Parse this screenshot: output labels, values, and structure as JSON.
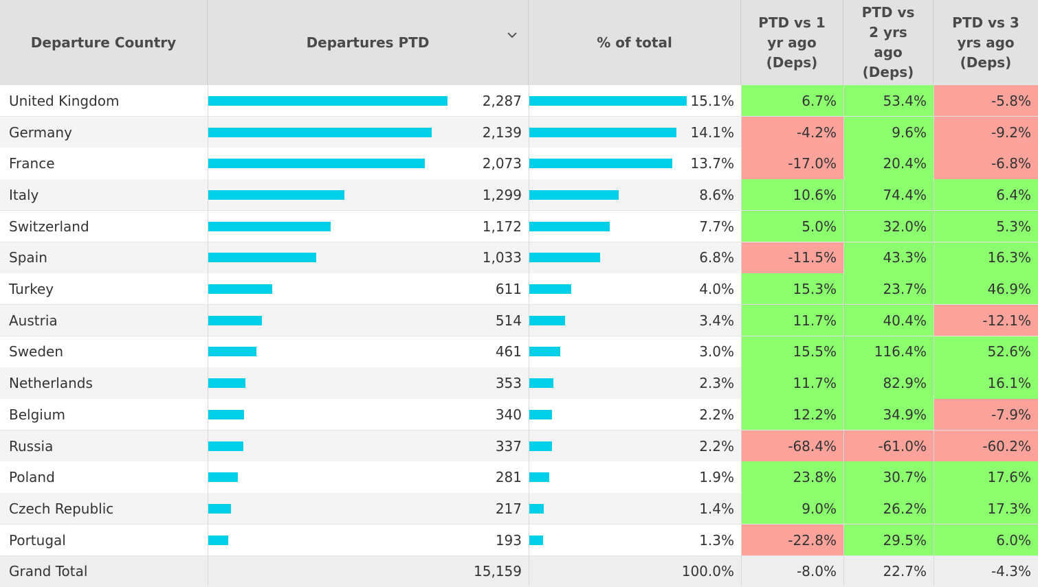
{
  "columns": {
    "country": "Departure Country",
    "departures": "Departures PTD",
    "pct_total": "% of total",
    "vs1_lines": [
      "PTD vs 1",
      "yr ago",
      "(Deps)"
    ],
    "vs2_lines": [
      "PTD vs",
      "2 yrs",
      "ago",
      "(Deps)"
    ],
    "vs3_lines": [
      "PTD vs 3",
      "yrs ago",
      "(Deps)"
    ]
  },
  "sort_icon": "chevron-down-icon",
  "colors": {
    "header_bg": "#e2e2e2",
    "bar": "#00cfe8",
    "positive": "#8bff6e",
    "negative": "#fba39b",
    "row_alt": "#f4f4f4",
    "total_bg": "#eeeeee"
  },
  "chart_data": {
    "type": "table",
    "bar_max": {
      "departures": 2287,
      "pct_total": 15.1
    },
    "rows": [
      {
        "country": "United Kingdom",
        "departures": 2287,
        "departures_label": "2,287",
        "pct_total": 15.1,
        "pct_label": "15.1%",
        "vs1": 6.7,
        "vs1_label": "6.7%",
        "vs2": 53.4,
        "vs2_label": "53.4%",
        "vs3": -5.8,
        "vs3_label": "-5.8%"
      },
      {
        "country": "Germany",
        "departures": 2139,
        "departures_label": "2,139",
        "pct_total": 14.1,
        "pct_label": "14.1%",
        "vs1": -4.2,
        "vs1_label": "-4.2%",
        "vs2": 9.6,
        "vs2_label": "9.6%",
        "vs3": -9.2,
        "vs3_label": "-9.2%"
      },
      {
        "country": "France",
        "departures": 2073,
        "departures_label": "2,073",
        "pct_total": 13.7,
        "pct_label": "13.7%",
        "vs1": -17.0,
        "vs1_label": "-17.0%",
        "vs2": 20.4,
        "vs2_label": "20.4%",
        "vs3": -6.8,
        "vs3_label": "-6.8%"
      },
      {
        "country": "Italy",
        "departures": 1299,
        "departures_label": "1,299",
        "pct_total": 8.6,
        "pct_label": "8.6%",
        "vs1": 10.6,
        "vs1_label": "10.6%",
        "vs2": 74.4,
        "vs2_label": "74.4%",
        "vs3": 6.4,
        "vs3_label": "6.4%"
      },
      {
        "country": "Switzerland",
        "departures": 1172,
        "departures_label": "1,172",
        "pct_total": 7.7,
        "pct_label": "7.7%",
        "vs1": 5.0,
        "vs1_label": "5.0%",
        "vs2": 32.0,
        "vs2_label": "32.0%",
        "vs3": 5.3,
        "vs3_label": "5.3%"
      },
      {
        "country": "Spain",
        "departures": 1033,
        "departures_label": "1,033",
        "pct_total": 6.8,
        "pct_label": "6.8%",
        "vs1": -11.5,
        "vs1_label": "-11.5%",
        "vs2": 43.3,
        "vs2_label": "43.3%",
        "vs3": 16.3,
        "vs3_label": "16.3%"
      },
      {
        "country": "Turkey",
        "departures": 611,
        "departures_label": "611",
        "pct_total": 4.0,
        "pct_label": "4.0%",
        "vs1": 15.3,
        "vs1_label": "15.3%",
        "vs2": 23.7,
        "vs2_label": "23.7%",
        "vs3": 46.9,
        "vs3_label": "46.9%"
      },
      {
        "country": "Austria",
        "departures": 514,
        "departures_label": "514",
        "pct_total": 3.4,
        "pct_label": "3.4%",
        "vs1": 11.7,
        "vs1_label": "11.7%",
        "vs2": 40.4,
        "vs2_label": "40.4%",
        "vs3": -12.1,
        "vs3_label": "-12.1%"
      },
      {
        "country": "Sweden",
        "departures": 461,
        "departures_label": "461",
        "pct_total": 3.0,
        "pct_label": "3.0%",
        "vs1": 15.5,
        "vs1_label": "15.5%",
        "vs2": 116.4,
        "vs2_label": "116.4%",
        "vs3": 52.6,
        "vs3_label": "52.6%"
      },
      {
        "country": "Netherlands",
        "departures": 353,
        "departures_label": "353",
        "pct_total": 2.3,
        "pct_label": "2.3%",
        "vs1": 11.7,
        "vs1_label": "11.7%",
        "vs2": 82.9,
        "vs2_label": "82.9%",
        "vs3": 16.1,
        "vs3_label": "16.1%"
      },
      {
        "country": "Belgium",
        "departures": 340,
        "departures_label": "340",
        "pct_total": 2.2,
        "pct_label": "2.2%",
        "vs1": 12.2,
        "vs1_label": "12.2%",
        "vs2": 34.9,
        "vs2_label": "34.9%",
        "vs3": -7.9,
        "vs3_label": "-7.9%"
      },
      {
        "country": "Russia",
        "departures": 337,
        "departures_label": "337",
        "pct_total": 2.2,
        "pct_label": "2.2%",
        "vs1": -68.4,
        "vs1_label": "-68.4%",
        "vs2": -61.0,
        "vs2_label": "-61.0%",
        "vs3": -60.2,
        "vs3_label": "-60.2%"
      },
      {
        "country": "Poland",
        "departures": 281,
        "departures_label": "281",
        "pct_total": 1.9,
        "pct_label": "1.9%",
        "vs1": 23.8,
        "vs1_label": "23.8%",
        "vs2": 30.7,
        "vs2_label": "30.7%",
        "vs3": 17.6,
        "vs3_label": "17.6%"
      },
      {
        "country": "Czech Republic",
        "departures": 217,
        "departures_label": "217",
        "pct_total": 1.4,
        "pct_label": "1.4%",
        "vs1": 9.0,
        "vs1_label": "9.0%",
        "vs2": 26.2,
        "vs2_label": "26.2%",
        "vs3": 17.3,
        "vs3_label": "17.3%"
      },
      {
        "country": "Portugal",
        "departures": 193,
        "departures_label": "193",
        "pct_total": 1.3,
        "pct_label": "1.3%",
        "vs1": -22.8,
        "vs1_label": "-22.8%",
        "vs2": 29.5,
        "vs2_label": "29.5%",
        "vs3": 6.0,
        "vs3_label": "6.0%"
      }
    ],
    "grand_total": {
      "country": "Grand Total",
      "departures": 15159,
      "departures_label": "15,159",
      "pct_total": 100.0,
      "pct_label": "100.0%",
      "vs1": -8.0,
      "vs1_label": "-8.0%",
      "vs2": 22.7,
      "vs2_label": "22.7%",
      "vs3": -4.3,
      "vs3_label": "-4.3%"
    }
  }
}
